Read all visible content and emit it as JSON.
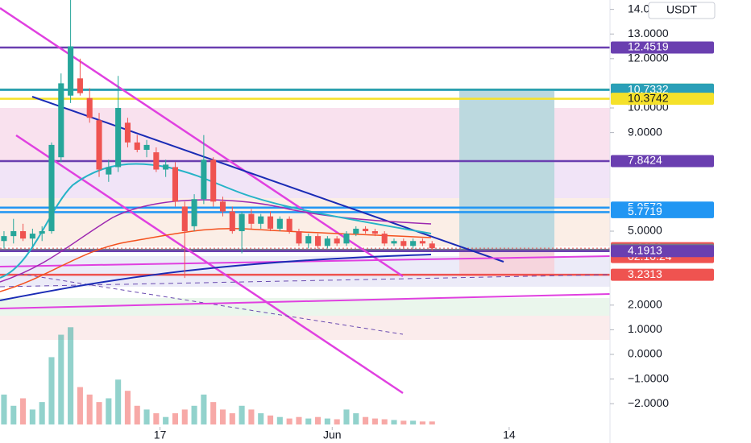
{
  "chart_data": {
    "type": "candlestick",
    "currency": "USDT",
    "x": [
      0,
      1,
      2,
      3,
      4,
      5,
      6,
      7,
      8,
      9,
      10,
      11,
      12,
      13,
      14,
      15,
      16,
      17,
      18,
      19,
      20,
      21,
      22,
      23,
      24,
      25,
      26,
      27,
      28,
      29,
      30,
      31,
      32,
      33,
      34,
      35,
      36,
      37,
      38,
      39,
      40,
      41,
      42,
      43,
      44,
      45
    ],
    "open": [
      4.6,
      4.8,
      5.0,
      4.7,
      4.9,
      5.0,
      8.0,
      10.5,
      11.2,
      10.4,
      9.5,
      7.3,
      7.6,
      9.4,
      8.6,
      8.3,
      8.2,
      7.5,
      7.6,
      6.0,
      5.2,
      6.3,
      7.9,
      6.2,
      5.8,
      5.0,
      5.7,
      5.3,
      5.6,
      5.1,
      5.5,
      5.0,
      4.5,
      4.8,
      4.4,
      4.7,
      4.5,
      4.9,
      5.1,
      5.0,
      4.9,
      4.5,
      4.6,
      4.4,
      4.6,
      4.5
    ],
    "high": [
      5.0,
      5.5,
      5.3,
      5.1,
      5.2,
      8.6,
      11.4,
      14.4,
      12.0,
      10.8,
      9.8,
      7.9,
      11.3,
      9.6,
      8.9,
      8.7,
      8.4,
      7.9,
      7.8,
      6.2,
      6.5,
      8.9,
      8.0,
      6.4,
      6.0,
      5.8,
      5.9,
      5.7,
      5.8,
      5.6,
      5.6,
      5.1,
      4.9,
      4.9,
      4.8,
      4.8,
      5.0,
      5.2,
      5.2,
      5.1,
      5.0,
      4.7,
      4.7,
      4.7,
      4.7,
      4.6
    ],
    "low": [
      4.3,
      4.5,
      4.6,
      4.4,
      4.6,
      4.9,
      7.8,
      10.2,
      10.5,
      9.4,
      7.2,
      7.0,
      7.4,
      8.4,
      8.2,
      8.0,
      7.4,
      7.2,
      6.0,
      3.1,
      5.0,
      6.1,
      6.0,
      5.6,
      4.9,
      4.1,
      5.1,
      5.1,
      5.0,
      5.0,
      4.9,
      4.4,
      4.3,
      4.3,
      4.3,
      4.4,
      4.4,
      4.8,
      4.9,
      4.8,
      4.4,
      4.4,
      4.3,
      4.3,
      4.4,
      4.2
    ],
    "close": [
      4.8,
      5.0,
      4.7,
      4.9,
      5.0,
      8.5,
      11.0,
      12.5,
      10.6,
      9.6,
      7.5,
      7.6,
      10.0,
      8.6,
      8.3,
      8.5,
      7.5,
      7.7,
      6.2,
      5.0,
      6.3,
      7.9,
      6.2,
      5.8,
      5.0,
      5.7,
      5.3,
      5.6,
      5.1,
      5.5,
      5.0,
      4.5,
      4.8,
      4.4,
      4.7,
      4.5,
      4.9,
      5.1,
      5.0,
      4.9,
      4.5,
      4.6,
      4.4,
      4.6,
      4.5,
      4.3079
    ],
    "volume": [
      40,
      25,
      35,
      20,
      30,
      90,
      120,
      130,
      50,
      40,
      30,
      35,
      60,
      45,
      25,
      20,
      15,
      10,
      15,
      20,
      25,
      40,
      30,
      20,
      15,
      25,
      20,
      15,
      12,
      10,
      8,
      10,
      8,
      10,
      8,
      7,
      20,
      15,
      10,
      8,
      7,
      6,
      5,
      5,
      4,
      4
    ],
    "volume_lim": [
      0,
      140
    ],
    "xlim": [
      -0.42,
      63.7
    ],
    "xticks": [
      {
        "value": 16.4,
        "label": "17"
      },
      {
        "value": 34.5,
        "label": "Jun"
      },
      {
        "value": 53.1,
        "label": "14"
      }
    ],
    "ylim": [
      -2.68,
      14.38
    ],
    "yticks": [
      {
        "value": 14,
        "label": "14.0000"
      },
      {
        "value": 13,
        "label": "13.0000"
      },
      {
        "value": 12,
        "label": "12.0000"
      },
      {
        "value": 10,
        "label": "10.0000"
      },
      {
        "value": 9,
        "label": "9.0000"
      },
      {
        "value": 5,
        "label": "5.0000"
      },
      {
        "value": 2,
        "label": "2.0000"
      },
      {
        "value": 1,
        "label": "1.0000"
      },
      {
        "value": 0,
        "label": "0.0000"
      },
      {
        "value": -1,
        "label": "−1.0000"
      },
      {
        "value": -2,
        "label": "−2.0000"
      }
    ],
    "price_lines": [
      {
        "value": 12.4519,
        "color": "#6a3fb0",
        "text_color": "#ffffff"
      },
      {
        "value": 10.7427,
        "color": "#26a17b",
        "text_color": "#ffffff"
      },
      {
        "value": 10.7332,
        "color": "#2a9fb8",
        "text_color": "#ffffff"
      },
      {
        "value": 10.3742,
        "color": "#f5e12a",
        "text_color": "#131722"
      },
      {
        "value": 7.8424,
        "color": "#6a3fb0",
        "text_color": "#ffffff"
      },
      {
        "value": 5.9573,
        "color": "#2196f3",
        "text_color": "#ffffff"
      },
      {
        "value": 5.7719,
        "color": "#2196f3",
        "text_color": "#ffffff"
      },
      {
        "value": 4.3079,
        "color": "#ef5350",
        "text_color": "#ffffff"
      },
      {
        "value": 4.2448,
        "color": "#787b86",
        "text_color": "#ffffff"
      },
      {
        "value": 4.1913,
        "color": "#6a3fb0",
        "text_color": "#ffffff"
      },
      {
        "value": 3.2313,
        "color": "#ef5350",
        "text_color": "#ffffff"
      }
    ],
    "countdown": "02:10:24",
    "up_color": "#26a69a",
    "down_color": "#ef5350"
  }
}
